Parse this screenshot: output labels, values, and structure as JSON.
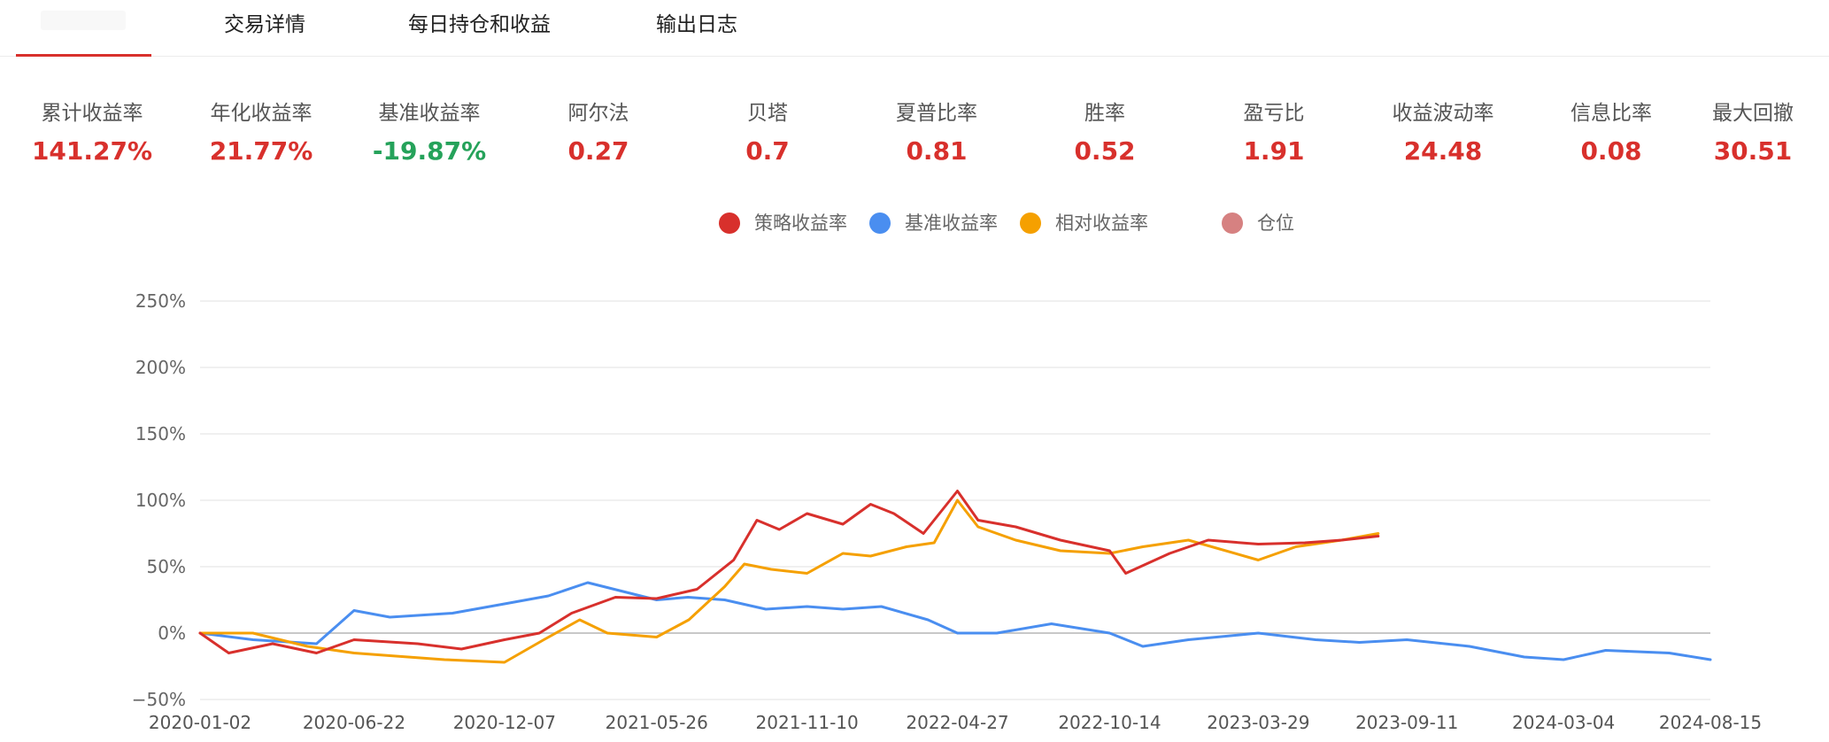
{
  "tabs": {
    "items": [
      {
        "label": "交易详情"
      },
      {
        "label": "每日持仓和收益"
      },
      {
        "label": "输出日志"
      }
    ]
  },
  "metrics": [
    {
      "label": "累计收益率",
      "value": "141.27%",
      "color": "#d8302c"
    },
    {
      "label": "年化收益率",
      "value": "21.77%",
      "color": "#d8302c"
    },
    {
      "label": "基准收益率",
      "value": "-19.87%",
      "color": "#25a25a"
    },
    {
      "label": "阿尔法",
      "value": "0.27",
      "color": "#d8302c"
    },
    {
      "label": "贝塔",
      "value": "0.7",
      "color": "#d8302c"
    },
    {
      "label": "夏普比率",
      "value": "0.81",
      "color": "#d8302c"
    },
    {
      "label": "胜率",
      "value": "0.52",
      "color": "#d8302c"
    },
    {
      "label": "盈亏比",
      "value": "1.91",
      "color": "#d8302c"
    },
    {
      "label": "收益波动率",
      "value": "24.48",
      "color": "#d8302c"
    },
    {
      "label": "信息比率",
      "value": "0.08",
      "color": "#d8302c"
    },
    {
      "label": "最大回撤",
      "value": "30.51",
      "color": "#d8302c"
    }
  ],
  "legend": [
    {
      "label": "策略收益率",
      "color": "#d8302c"
    },
    {
      "label": "基准收益率",
      "color": "#4a8ef0"
    },
    {
      "label": "相对收益率",
      "color": "#f5a000"
    },
    {
      "label": "仓位",
      "color": "#cf6b6b"
    }
  ],
  "chart_data": {
    "type": "line",
    "ylim": [
      -50,
      250
    ],
    "yticks": [
      -50,
      0,
      50,
      100,
      150,
      200,
      250
    ],
    "ytick_labels": [
      "−50%",
      "0%",
      "50%",
      "100%",
      "150%",
      "200%",
      "250%"
    ],
    "grid": true,
    "legend_position": "top-center",
    "x_tick_labels": [
      "2020-01-02",
      "2020-06-22",
      "2020-12-07",
      "2021-05-26",
      "2021-11-10",
      "2022-04-27",
      "2022-10-14",
      "2023-03-29",
      "2023-09-11",
      "2024-03-04",
      "2024-08-15"
    ],
    "series": [
      {
        "name": "策略收益率",
        "color": "#d8302c",
        "x": [
          "2020-01-02",
          "2020-02-03",
          "2020-03-23",
          "2020-05-11",
          "2020-06-22",
          "2020-09-01",
          "2020-10-20",
          "2020-12-07",
          "2021-01-15",
          "2021-02-20",
          "2021-04-10",
          "2021-05-26",
          "2021-07-10",
          "2021-08-20",
          "2021-09-15",
          "2021-10-10",
          "2021-11-10",
          "2021-12-20",
          "2022-01-20",
          "2022-02-15",
          "2022-03-20",
          "2022-04-27",
          "2022-05-20",
          "2022-07-01",
          "2022-08-20",
          "2022-10-14",
          "2022-11-01",
          "2022-12-20",
          "2023-02-01",
          "2023-03-29",
          "2023-05-20",
          "2023-06-30",
          "2023-08-10"
        ],
        "values": [
          0,
          -15,
          -8,
          -15,
          -5,
          -8,
          -12,
          -5,
          0,
          15,
          27,
          26,
          33,
          55,
          85,
          78,
          90,
          82,
          97,
          90,
          75,
          107,
          85,
          80,
          70,
          62,
          45,
          60,
          70,
          67,
          68,
          70,
          73
        ]
      },
      {
        "name": "基准收益率",
        "color": "#4a8ef0",
        "x": [
          "2020-01-02",
          "2020-03-01",
          "2020-05-11",
          "2020-06-22",
          "2020-08-01",
          "2020-10-10",
          "2020-12-07",
          "2021-01-25",
          "2021-03-10",
          "2021-05-26",
          "2021-06-30",
          "2021-08-10",
          "2021-09-25",
          "2021-11-10",
          "2021-12-20",
          "2022-02-01",
          "2022-03-25",
          "2022-04-27",
          "2022-06-10",
          "2022-08-10",
          "2022-10-14",
          "2022-11-20",
          "2023-01-10",
          "2023-03-29",
          "2023-06-01",
          "2023-07-20",
          "2023-09-11",
          "2023-11-20",
          "2024-01-20",
          "2024-03-04",
          "2024-04-20",
          "2024-06-30",
          "2024-08-15"
        ],
        "values": [
          0,
          -5,
          -8,
          17,
          12,
          15,
          22,
          28,
          38,
          25,
          27,
          25,
          18,
          20,
          18,
          20,
          10,
          0,
          0,
          7,
          0,
          -10,
          -5,
          0,
          -5,
          -7,
          -5,
          -10,
          -18,
          -20,
          -13,
          -15,
          -20
        ]
      },
      {
        "name": "相对收益率",
        "color": "#f5a000",
        "x": [
          "2020-01-02",
          "2020-03-01",
          "2020-05-01",
          "2020-06-22",
          "2020-08-01",
          "2020-10-01",
          "2020-12-07",
          "2021-01-20",
          "2021-03-01",
          "2021-04-01",
          "2021-05-26",
          "2021-07-01",
          "2021-08-10",
          "2021-09-01",
          "2021-10-01",
          "2021-11-10",
          "2021-12-20",
          "2022-01-20",
          "2022-03-01",
          "2022-04-01",
          "2022-04-27",
          "2022-05-20",
          "2022-07-01",
          "2022-08-20",
          "2022-10-14",
          "2022-11-20",
          "2023-01-10",
          "2023-03-29",
          "2023-05-10",
          "2023-06-30",
          "2023-08-10"
        ],
        "values": [
          0,
          0,
          -10,
          -15,
          -17,
          -20,
          -22,
          -5,
          10,
          0,
          -3,
          10,
          35,
          52,
          48,
          45,
          60,
          58,
          65,
          68,
          100,
          80,
          70,
          62,
          60,
          65,
          70,
          55,
          65,
          70,
          75
        ]
      }
    ]
  }
}
